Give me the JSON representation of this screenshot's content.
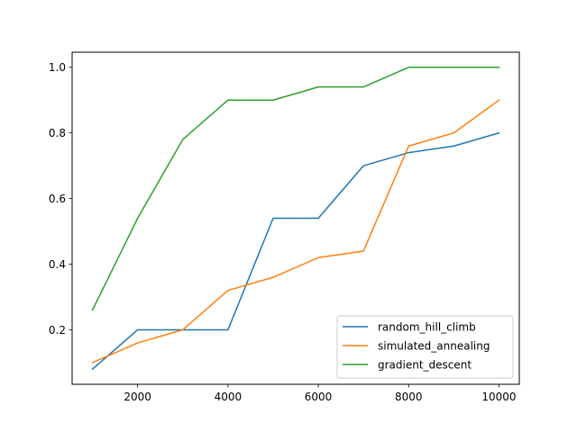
{
  "chart_data": {
    "type": "line",
    "title": "",
    "xlabel": "",
    "ylabel": "",
    "x": [
      1000,
      2000,
      3000,
      4000,
      5000,
      6000,
      7000,
      8000,
      9000,
      10000
    ],
    "xlim": [
      550,
      10450
    ],
    "ylim": [
      0.034,
      1.046
    ],
    "xticks": [
      2000,
      4000,
      6000,
      8000,
      10000
    ],
    "yticks": [
      0.2,
      0.4,
      0.6,
      0.8,
      1.0
    ],
    "xtick_labels": [
      "2000",
      "4000",
      "6000",
      "8000",
      "10000"
    ],
    "ytick_labels": [
      "0.2",
      "0.4",
      "0.6",
      "0.8",
      "1.0"
    ],
    "grid": false,
    "legend_position": "lower-right",
    "series": [
      {
        "name": "random_hill_climb",
        "color": "#1f77b4",
        "values": [
          0.08,
          0.2,
          0.2,
          0.2,
          0.54,
          0.54,
          0.7,
          0.74,
          0.76,
          0.8
        ]
      },
      {
        "name": "simulated_annealing",
        "color": "#ff7f0e",
        "values": [
          0.1,
          0.16,
          0.2,
          0.32,
          0.36,
          0.42,
          0.44,
          0.76,
          0.8,
          0.9
        ]
      },
      {
        "name": "gradient_descent",
        "color": "#2ca02c",
        "values": [
          0.26,
          0.54,
          0.78,
          0.9,
          0.9,
          0.94,
          0.94,
          1.0,
          1.0,
          1.0
        ]
      }
    ]
  }
}
